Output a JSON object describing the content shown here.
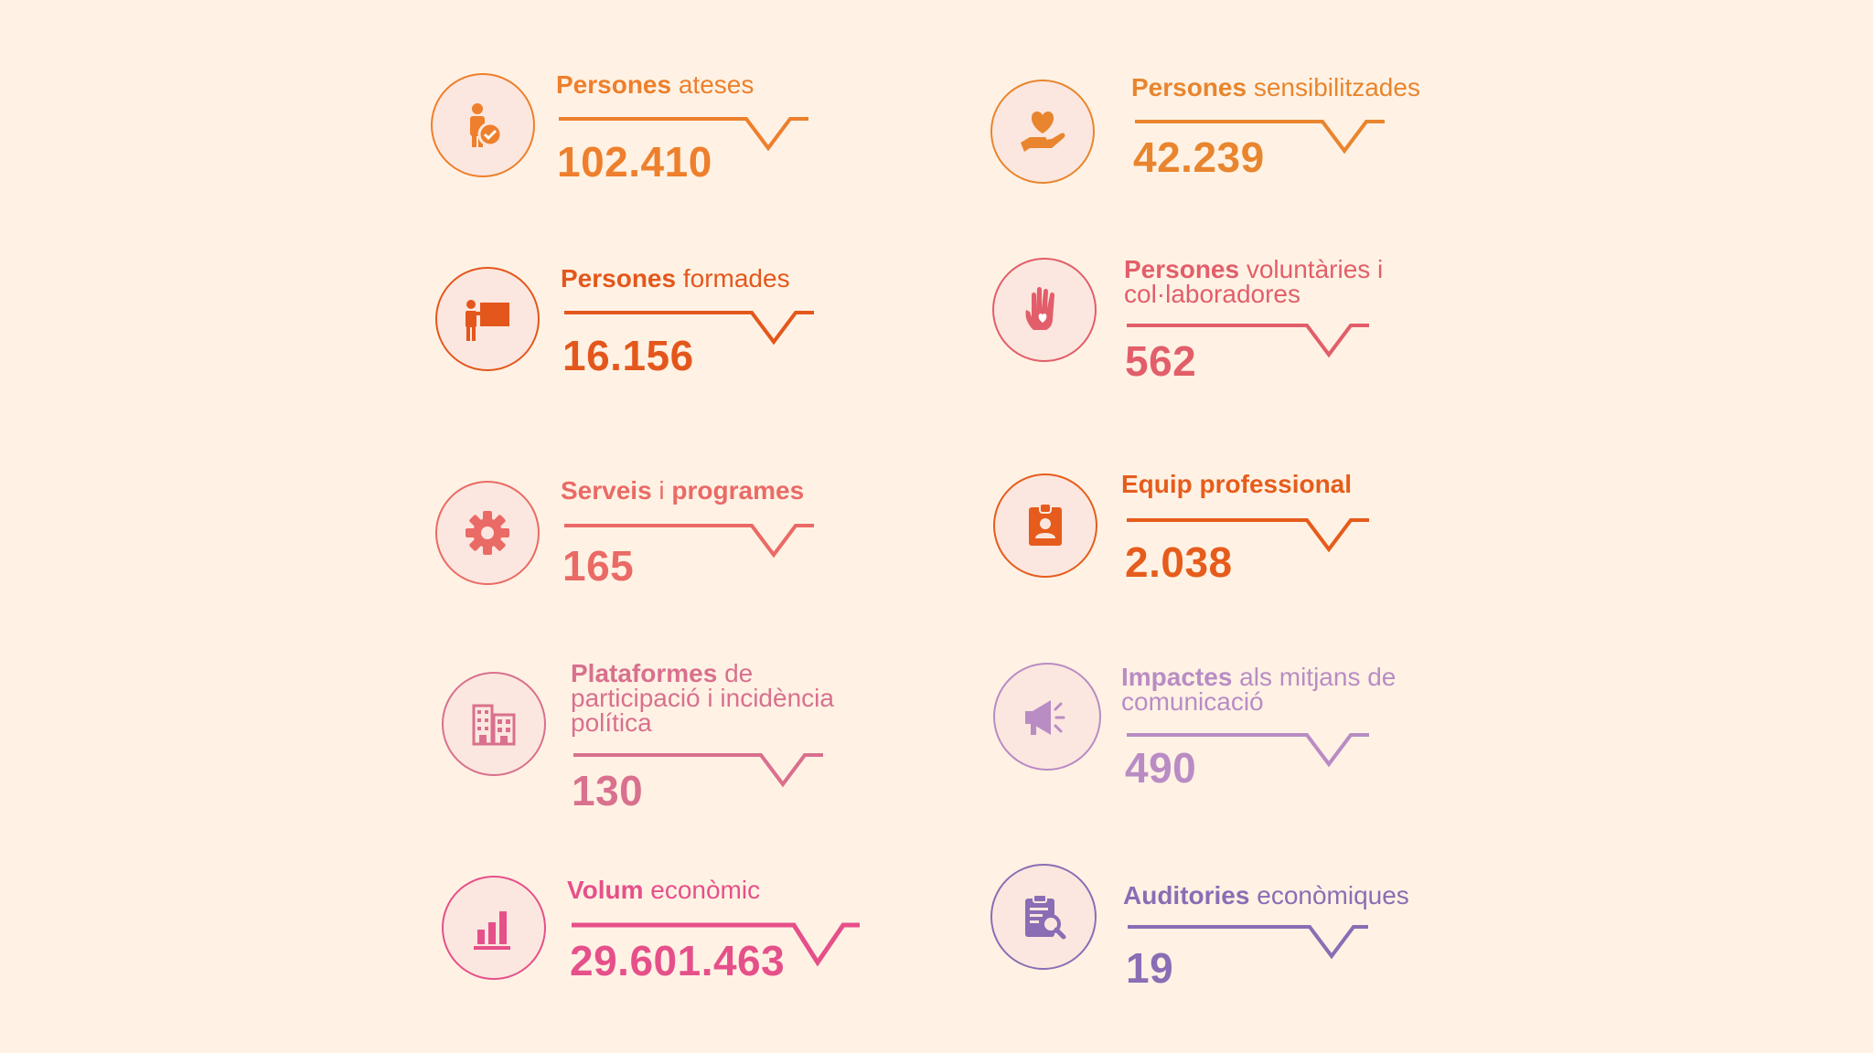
{
  "stats": [
    {
      "bold": "Persones",
      "rest": " ateses",
      "value": "102.410",
      "color": "#ee7f2c",
      "icon": "person-check-icon"
    },
    {
      "bold": "Persones",
      "rest": " sensibilitzades",
      "value": "42.239",
      "color": "#e8852e",
      "icon": "heart-hand-icon"
    },
    {
      "bold": "Persones",
      "rest": " formades",
      "value": "16.156",
      "color": "#e4571c",
      "icon": "teacher-board-icon"
    },
    {
      "bold": "Persones",
      "rest": " voluntàries i col·laboradores",
      "value": "562",
      "color": "#e25e6a",
      "icon": "raised-hand-heart-icon"
    },
    {
      "bold": "Serveis",
      "rest": " i ",
      "bold2": "programes",
      "value": "165",
      "color": "#ea6a66",
      "icon": "gear-icon"
    },
    {
      "bold": "Equip professional",
      "rest": "",
      "value": "2.038",
      "color": "#e65c1c",
      "icon": "id-badge-icon"
    },
    {
      "bold": "Plataformes",
      "rest": " de participació i incidència política",
      "value": "130",
      "color": "#d9708e",
      "icon": "buildings-icon"
    },
    {
      "bold": "Impactes",
      "rest": " als mitjans de comunicació",
      "value": "490",
      "color": "#b98cc4",
      "icon": "megaphone-icon"
    },
    {
      "bold": "Volum",
      "rest": " econòmic",
      "value": "29.601.463",
      "color": "#e6508a",
      "icon": "bar-chart-icon"
    },
    {
      "bold": "Auditories",
      "rest": " econòmiques",
      "value": "19",
      "color": "#8a6db4",
      "icon": "clipboard-search-icon"
    }
  ]
}
